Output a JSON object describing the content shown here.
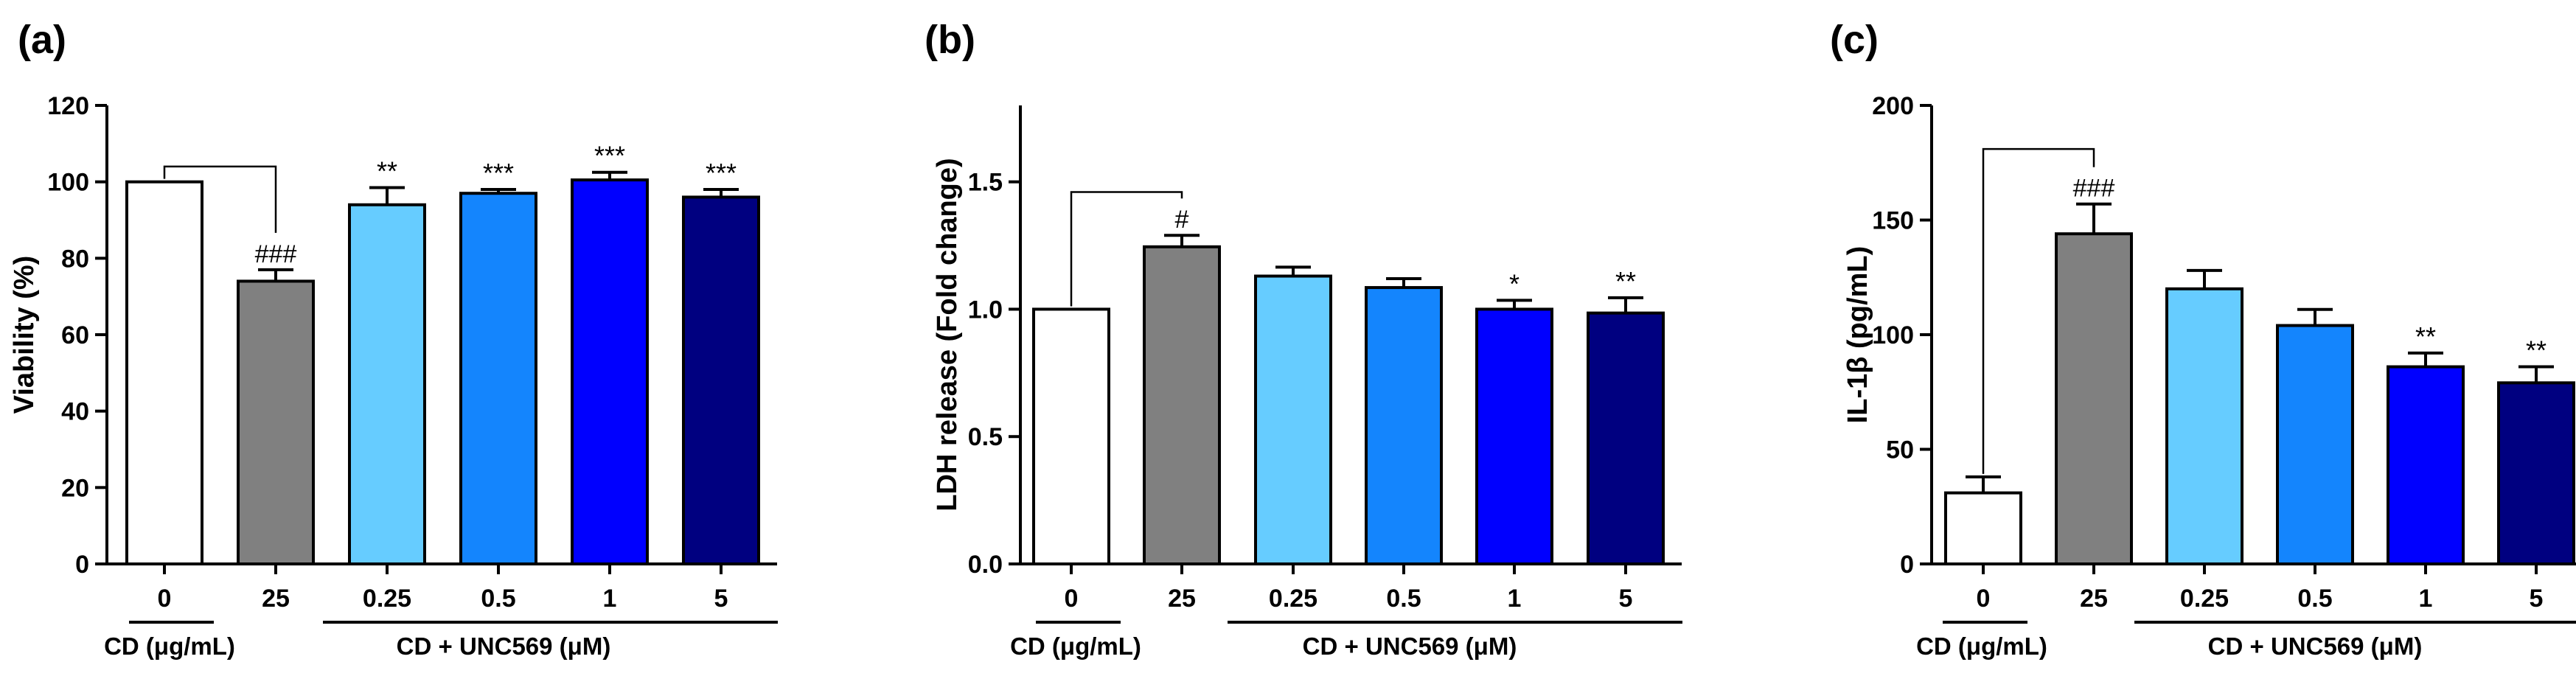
{
  "colors": {
    "control": "#ffffff",
    "cd": "#808080",
    "unc_0_25": "#66ccff",
    "unc_0_5": "#1485fd",
    "unc_1": "#0000ff",
    "unc_5": "#000080"
  },
  "chart_data": [
    {
      "type": "bar",
      "panel": "(a)",
      "ylabel": "Viability (%)",
      "xlabel": "",
      "ylim": [
        0,
        120
      ],
      "yticks": [
        "0",
        "20",
        "40",
        "60",
        "80",
        "100",
        "120"
      ],
      "ytick_values": [
        0,
        20,
        40,
        60,
        80,
        100,
        120
      ],
      "categories": [
        "0",
        "25",
        "0.25",
        "0.5",
        "1",
        "5"
      ],
      "values": [
        100,
        74,
        94,
        97,
        100.5,
        96
      ],
      "errors": [
        0,
        3,
        4.5,
        1,
        2,
        2
      ],
      "significance": [
        "",
        "###",
        "**",
        "***",
        "***",
        "***"
      ],
      "groups": [
        "CD (μg/mL)",
        "CD + UNC569 (μM)"
      ],
      "bracket": {
        "from_category": "0",
        "to_category": "25",
        "at_value": 104
      }
    },
    {
      "type": "bar",
      "panel": "(b)",
      "ylabel": "LDH release (Fold change)",
      "xlabel": "",
      "ylim": [
        0,
        1.8
      ],
      "yticks": [
        "0.0",
        "0.5",
        "1.0",
        "1.5"
      ],
      "ytick_values": [
        0,
        0.5,
        1.0,
        1.5
      ],
      "categories": [
        "0",
        "25",
        "0.25",
        "0.5",
        "1",
        "5"
      ],
      "values": [
        1.0,
        1.245,
        1.13,
        1.085,
        1.0,
        0.985
      ],
      "errors": [
        0,
        0.045,
        0.035,
        0.035,
        0.035,
        0.06
      ],
      "significance": [
        "",
        "#",
        "",
        "",
        "*",
        "**"
      ],
      "groups": [
        "CD (μg/mL)",
        "CD + UNC569 (μM)"
      ],
      "bracket": {
        "from_category": "0",
        "to_category": "25",
        "at_value": 1.46
      }
    },
    {
      "type": "bar",
      "panel": "(c)",
      "ylabel": "IL-1β (pg/mL)",
      "xlabel": "",
      "ylim": [
        0,
        200
      ],
      "yticks": [
        "0",
        "50",
        "100",
        "150",
        "200"
      ],
      "ytick_values": [
        0,
        50,
        100,
        150,
        200
      ],
      "categories": [
        "0",
        "25",
        "0.25",
        "0.5",
        "1",
        "5"
      ],
      "values": [
        31,
        144,
        120,
        104,
        86,
        79
      ],
      "errors": [
        7,
        13,
        8,
        7,
        6,
        7
      ],
      "significance": [
        "",
        "###",
        "",
        "",
        "**",
        "**"
      ],
      "groups": [
        "CD (μg/mL)",
        "CD + UNC569 (μM)"
      ],
      "bracket": {
        "from_category": "0",
        "to_category": "25",
        "at_value": 181
      }
    }
  ]
}
